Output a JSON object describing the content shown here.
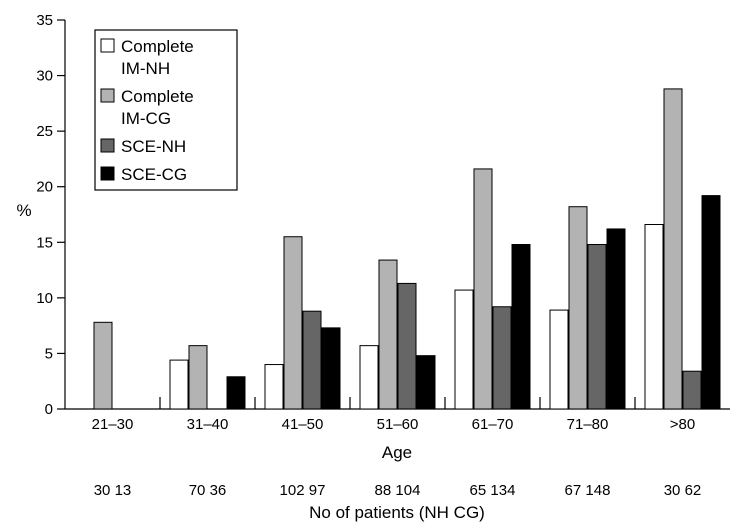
{
  "chart_data": {
    "type": "bar",
    "title": "",
    "xlabel": "Age",
    "ylabel": "%",
    "ylim": [
      0,
      35
    ],
    "yticks": [
      0,
      5,
      10,
      15,
      20,
      25,
      30,
      35
    ],
    "categories": [
      "21–30",
      "31–40",
      "41–50",
      "51–60",
      "61–70",
      "71–80",
      ">80"
    ],
    "series": [
      {
        "name": "Complete IM-NH",
        "legend_lines": [
          "Complete",
          "IM-NH"
        ],
        "color": "#ffffff",
        "values": [
          0,
          4.4,
          4.0,
          5.7,
          10.7,
          8.9,
          16.6
        ]
      },
      {
        "name": "Complete IM-CG",
        "legend_lines": [
          "Complete",
          "IM-CG"
        ],
        "color": "#b3b3b3",
        "values": [
          7.8,
          5.7,
          15.5,
          13.4,
          21.6,
          18.2,
          28.8
        ]
      },
      {
        "name": "SCE-NH",
        "legend_lines": [
          "SCE-NH"
        ],
        "color": "#666666",
        "values": [
          0,
          0,
          8.8,
          11.3,
          9.2,
          14.8,
          3.4
        ]
      },
      {
        "name": "SCE-CG",
        "legend_lines": [
          "SCE-CG"
        ],
        "color": "#000000",
        "values": [
          0,
          2.9,
          7.3,
          4.8,
          14.8,
          16.2,
          19.2
        ]
      }
    ],
    "patients_label": "No of patients (NH CG)",
    "patients": [
      "30 13",
      "70 36",
      "102 97",
      "88 104",
      "65 134",
      "67 148",
      "30 62"
    ],
    "legend_position": "top-left",
    "grid": false
  }
}
